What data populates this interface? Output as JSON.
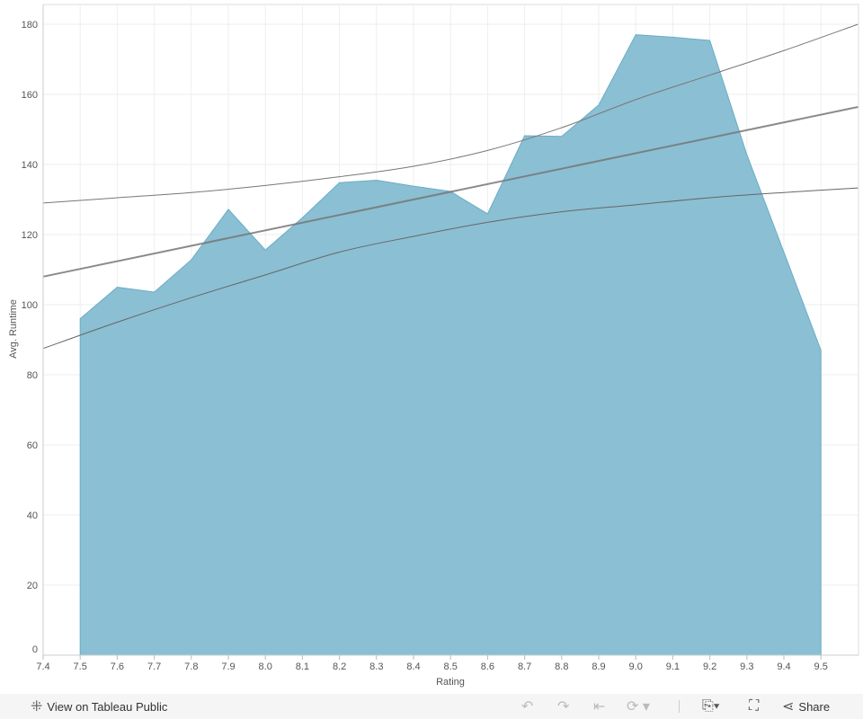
{
  "chart_data": {
    "type": "area",
    "xlabel": "Rating",
    "ylabel": "Avg. Runtime",
    "xlim": [
      7.4,
      9.6
    ],
    "ylim": [
      0,
      185
    ],
    "x_ticks": [
      "7.4",
      "7.5",
      "7.6",
      "7.7",
      "7.8",
      "7.9",
      "8.0",
      "8.1",
      "8.2",
      "8.3",
      "8.4",
      "8.5",
      "8.6",
      "8.7",
      "8.8",
      "8.9",
      "9.0",
      "9.1",
      "9.2",
      "9.3",
      "9.4",
      "9.5"
    ],
    "y_ticks": [
      "0",
      "20",
      "40",
      "60",
      "80",
      "100",
      "120",
      "140",
      "160",
      "180"
    ],
    "grid": true,
    "x": [
      7.5,
      7.6,
      7.7,
      7.8,
      7.9,
      8.0,
      8.1,
      8.2,
      8.3,
      8.4,
      8.5,
      8.6,
      8.7,
      8.8,
      8.9,
      9.0,
      9.1,
      9.2,
      9.3,
      9.4,
      9.5
    ],
    "values": [
      96,
      105,
      103.6,
      112.8,
      127.2,
      115.6,
      124.8,
      134.8,
      135.5,
      133.8,
      132.3,
      125.9,
      148.2,
      148,
      157,
      177,
      176.3,
      175.4,
      142.8,
      115,
      87
    ],
    "fill_color": "#8bbfd3",
    "trend_line": {
      "type": "linear",
      "x": [
        7.4,
        9.6
      ],
      "y": [
        108,
        156.4
      ],
      "color": "#888888"
    },
    "confidence_bands": {
      "x": [
        7.4,
        7.6,
        7.8,
        8.0,
        8.2,
        8.4,
        8.6,
        8.8,
        9.0,
        9.2,
        9.4,
        9.6
      ],
      "upper": [
        129,
        130.5,
        132,
        134,
        136.5,
        139.5,
        144,
        150.5,
        158.5,
        165.5,
        172.5,
        180
      ],
      "lower": [
        87.5,
        95,
        102,
        108.5,
        115,
        119.5,
        123.5,
        126.5,
        128.5,
        130.5,
        132,
        133.3
      ]
    }
  },
  "footer": {
    "view_label": "View on Tableau Public",
    "share_label": "Share"
  }
}
